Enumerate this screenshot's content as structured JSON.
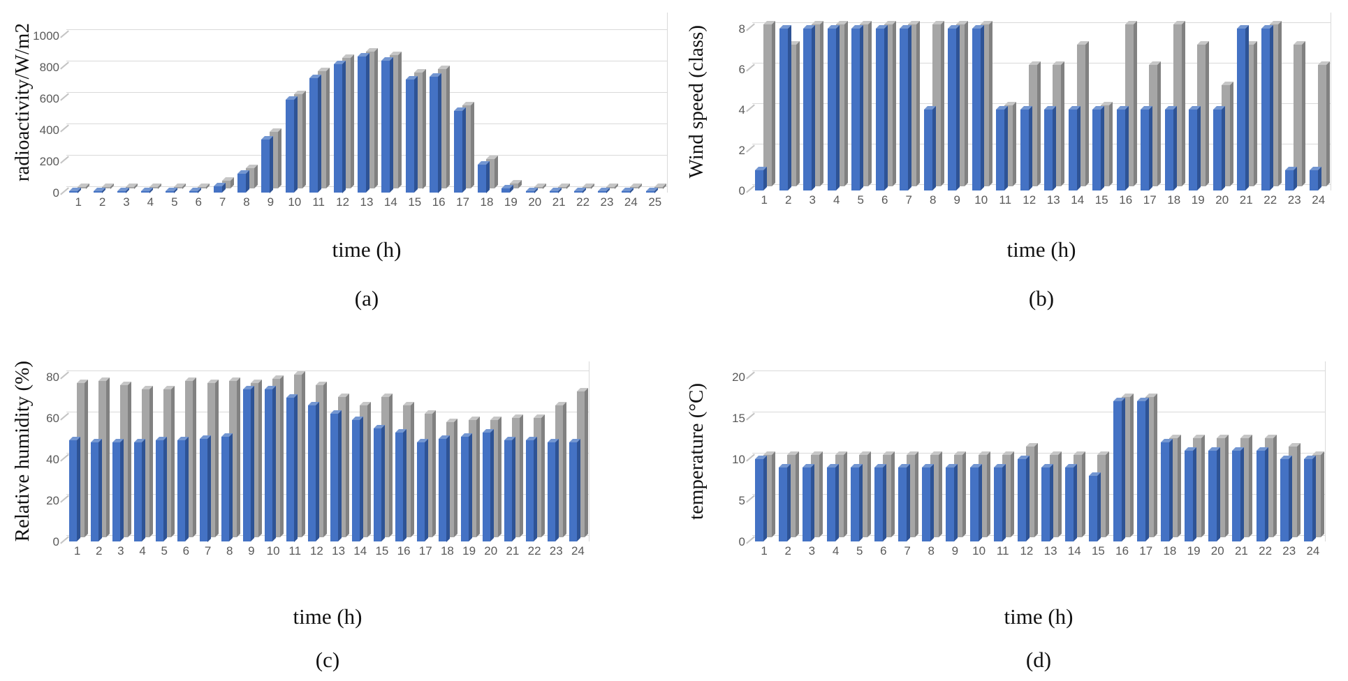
{
  "page": {
    "background": "#ffffff",
    "description": "Figure with four 3D-style clustered bar charts of hourly weather data"
  },
  "colors": {
    "bar_blue_front": "#4472C4",
    "bar_blue_side": "#2E5395",
    "bar_blue_top": "#7396D1",
    "bar_gray_front": "#A6A6A6",
    "bar_gray_side": "#818181",
    "bar_gray_top": "#C6C6C6",
    "gridline": "#D9D9D9",
    "tick_text": "#595959",
    "axis_text": "#111111"
  },
  "chart_data": [
    {
      "id": "a",
      "type": "bar",
      "caption": "(a)",
      "ylabel": "radioactivity/W/m2",
      "xlabel": "time (h)",
      "categories": [
        "1",
        "2",
        "3",
        "4",
        "5",
        "6",
        "7",
        "8",
        "9",
        "10",
        "11",
        "12",
        "13",
        "14",
        "15",
        "16",
        "17",
        "18",
        "19",
        "20",
        "21",
        "22",
        "23",
        "24",
        "25"
      ],
      "yticks": [
        0,
        200,
        400,
        600,
        800,
        1000
      ],
      "ylim": [
        0,
        1000
      ],
      "grid": true,
      "legend": "none",
      "series": [
        {
          "name": "series-blue",
          "color_key": "blue",
          "values": [
            0,
            0,
            0,
            0,
            0,
            0,
            40,
            120,
            340,
            590,
            730,
            820,
            865,
            840,
            720,
            740,
            520,
            180,
            25,
            0,
            0,
            0,
            0,
            0,
            0
          ]
        },
        {
          "name": "series-gray",
          "color_key": "gray",
          "values": [
            0,
            0,
            0,
            0,
            0,
            0,
            50,
            130,
            360,
            600,
            745,
            830,
            870,
            850,
            740,
            760,
            530,
            185,
            30,
            0,
            0,
            0,
            0,
            0,
            0
          ]
        }
      ]
    },
    {
      "id": "b",
      "type": "bar",
      "caption": "(b)",
      "ylabel": "Wind speed (class)",
      "xlabel": "time (h)",
      "categories": [
        "1",
        "2",
        "3",
        "4",
        "5",
        "6",
        "7",
        "8",
        "9",
        "10",
        "11",
        "12",
        "13",
        "14",
        "15",
        "16",
        "17",
        "18",
        "19",
        "20",
        "21",
        "22",
        "23",
        "24"
      ],
      "yticks": [
        0,
        2,
        4,
        6,
        8
      ],
      "ylim": [
        0,
        8
      ],
      "grid": true,
      "legend": "none",
      "series": [
        {
          "name": "series-blue",
          "color_key": "blue",
          "values": [
            1,
            8,
            8,
            8,
            8,
            8,
            8,
            4,
            8,
            8,
            4,
            4,
            4,
            4,
            4,
            4,
            4,
            4,
            4,
            4,
            8,
            8,
            1,
            1
          ]
        },
        {
          "name": "series-gray",
          "color_key": "gray",
          "values": [
            8,
            7,
            8,
            8,
            8,
            8,
            8,
            8,
            8,
            8,
            4,
            6,
            6,
            7,
            4,
            8,
            6,
            8,
            7,
            5,
            7,
            8,
            7,
            6
          ]
        }
      ]
    },
    {
      "id": "c",
      "type": "bar",
      "caption": "(c)",
      "ylabel": "Relative humidity (%)",
      "xlabel": "time (h)",
      "categories": [
        "1",
        "2",
        "3",
        "4",
        "5",
        "6",
        "7",
        "8",
        "9",
        "10",
        "11",
        "12",
        "13",
        "14",
        "15",
        "16",
        "17",
        "18",
        "19",
        "20",
        "21",
        "22",
        "23",
        "24"
      ],
      "yticks": [
        0,
        20,
        40,
        60,
        80
      ],
      "ylim": [
        0,
        80
      ],
      "grid": true,
      "legend": "none",
      "series": [
        {
          "name": "series-blue",
          "color_key": "blue",
          "values": [
            49,
            48,
            48,
            48,
            49,
            49,
            50,
            51,
            74,
            74,
            70,
            66,
            62,
            59,
            55,
            53,
            48,
            50,
            51,
            53,
            49,
            49,
            48,
            48
          ]
        },
        {
          "name": "series-gray",
          "color_key": "gray",
          "values": [
            75,
            76,
            74,
            72,
            72,
            76,
            75,
            76,
            75,
            77,
            79,
            74,
            68,
            64,
            68,
            64,
            60,
            56,
            57,
            57,
            58,
            58,
            64,
            71
          ]
        }
      ]
    },
    {
      "id": "d",
      "type": "bar",
      "caption": "(d)",
      "ylabel": "temperature (°C)",
      "xlabel": "time (h)",
      "categories": [
        "1",
        "2",
        "3",
        "4",
        "5",
        "6",
        "7",
        "8",
        "9",
        "10",
        "11",
        "12",
        "13",
        "14",
        "15",
        "16",
        "17",
        "18",
        "19",
        "20",
        "21",
        "22",
        "23",
        "24"
      ],
      "yticks": [
        0,
        5,
        10,
        15,
        20
      ],
      "ylim": [
        0,
        20
      ],
      "grid": true,
      "legend": "none",
      "series": [
        {
          "name": "series-blue",
          "color_key": "blue",
          "values": [
            10,
            9,
            9,
            9,
            9,
            9,
            9,
            9,
            9,
            9,
            9,
            10,
            9,
            9,
            8,
            17,
            17,
            12,
            11,
            11,
            11,
            11,
            10,
            10
          ]
        },
        {
          "name": "series-gray",
          "color_key": "gray",
          "values": [
            10,
            10,
            10,
            10,
            10,
            10,
            10,
            10,
            10,
            10,
            10,
            11,
            10,
            10,
            10,
            17,
            17,
            12,
            12,
            12,
            12,
            12,
            11,
            10
          ]
        }
      ]
    }
  ]
}
